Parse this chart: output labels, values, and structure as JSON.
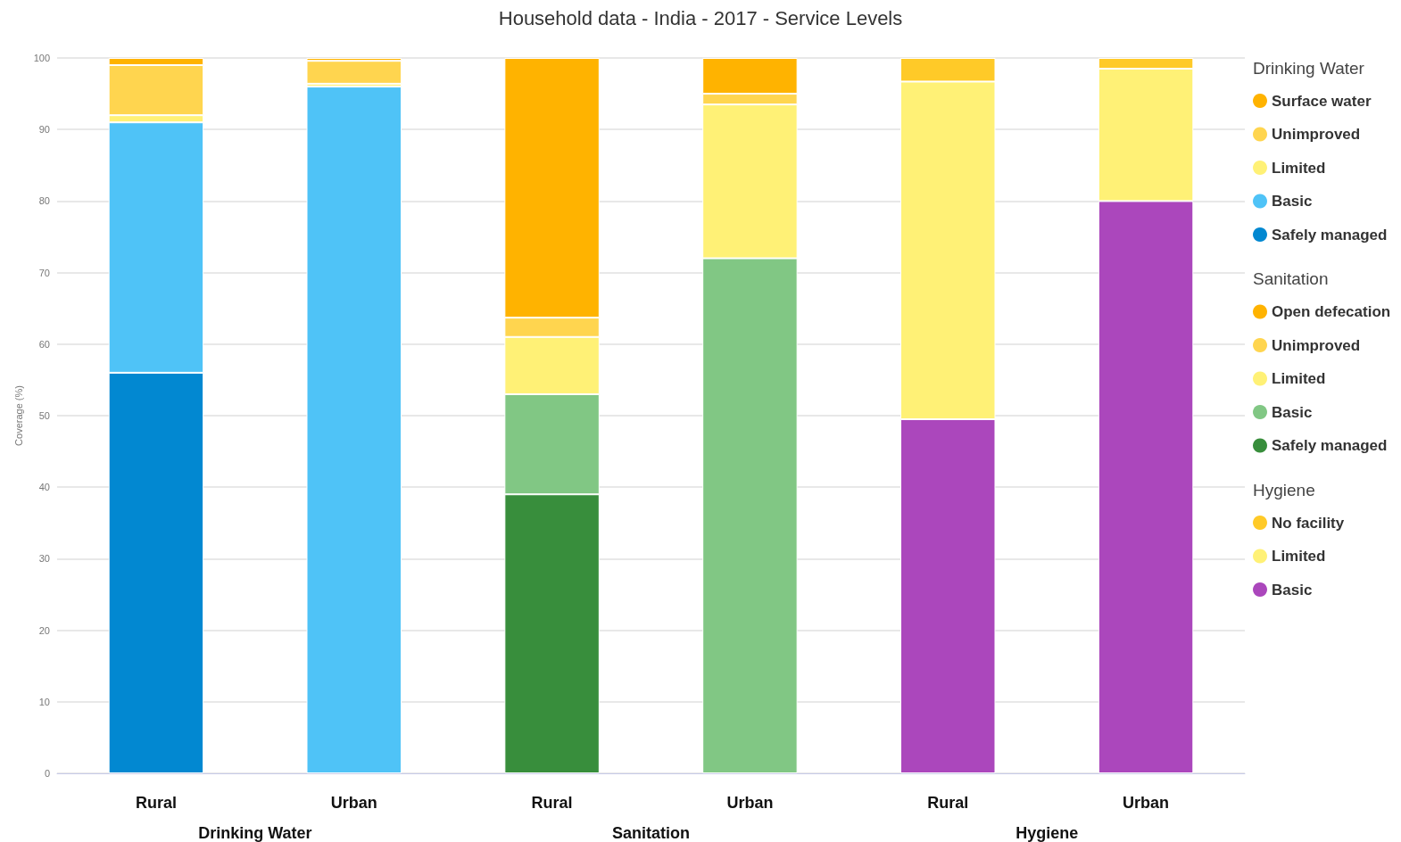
{
  "chart_data": {
    "type": "bar",
    "title": "Household data - India - 2017 - Service Levels",
    "ylabel": "Coverage (%)",
    "categories": [
      "Rural",
      "Urban",
      "Rural",
      "Urban",
      "Rural",
      "Urban"
    ],
    "stacked": true,
    "ylim": [
      0,
      100
    ],
    "yticks": [
      0,
      10,
      20,
      30,
      40,
      50,
      60,
      70,
      80,
      90,
      100
    ],
    "grid": "y",
    "legend": "right",
    "annotations": [
      "Drinking Water",
      "Sanitation",
      "Hygiene",
      "Drinking Water",
      "Sanitation",
      "Hygiene"
    ],
    "series": [
      {
        "name": "Safely managed",
        "color": "#0288d1",
        "values": [
          56,
          null,
          null,
          null,
          null,
          null
        ]
      },
      {
        "name": "Basic",
        "color": "#4fc3f7",
        "values": [
          35,
          96,
          null,
          null,
          null,
          null
        ]
      },
      {
        "name": "Limited",
        "color": "#fff176",
        "values": [
          1,
          0.4,
          null,
          null,
          null,
          null
        ]
      },
      {
        "name": "Unimproved",
        "color": "#ffd54f",
        "values": [
          7,
          3.2,
          null,
          null,
          null,
          null
        ]
      },
      {
        "name": "Surface water",
        "color": "#ffb300",
        "values": [
          1,
          0.4,
          null,
          null,
          null,
          null
        ]
      },
      {
        "name": "Safely managed",
        "color": "#388e3c",
        "values": [
          null,
          null,
          39,
          null,
          null,
          null
        ]
      },
      {
        "name": "Basic",
        "color": "#81c784",
        "values": [
          null,
          null,
          14,
          72,
          null,
          null
        ]
      },
      {
        "name": "Limited",
        "color": "#fff176",
        "values": [
          null,
          null,
          8,
          21.5,
          null,
          null
        ]
      },
      {
        "name": "Unimproved",
        "color": "#ffd54f",
        "values": [
          null,
          null,
          2.7,
          1.5,
          null,
          null
        ]
      },
      {
        "name": "Open defecation",
        "color": "#ffb300",
        "values": [
          null,
          null,
          36.3,
          5,
          null,
          null
        ]
      },
      {
        "name": "Basic",
        "color": "#ab47bc",
        "values": [
          null,
          null,
          null,
          null,
          49.5,
          80
        ]
      },
      {
        "name": "Limited",
        "color": "#fff176",
        "values": [
          null,
          null,
          null,
          null,
          47.2,
          18.5
        ]
      },
      {
        "name": "No facility",
        "color": "#ffca28",
        "values": [
          null,
          null,
          null,
          null,
          3.3,
          1.5
        ]
      }
    ]
  }
}
